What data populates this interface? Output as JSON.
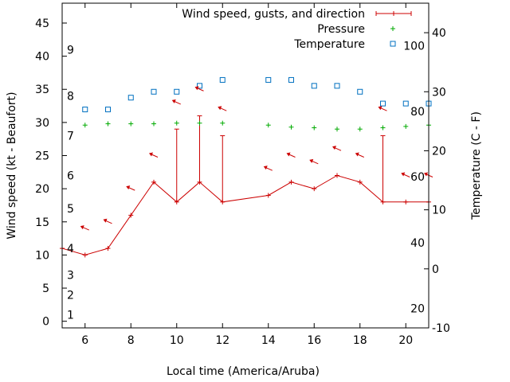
{
  "chart_data": {
    "type": "line",
    "xlabel": "Local time (America/Aruba)",
    "ylabel": "Wind speed (kt - Beaufort)",
    "y2label": "Temperature (C - F)",
    "xlim": [
      5,
      21
    ],
    "ylim": [
      -1,
      48
    ],
    "y2lim": [
      -10,
      45
    ],
    "x_ticks": [
      6,
      8,
      10,
      12,
      14,
      16,
      18,
      20
    ],
    "y_ticks": [
      0,
      5,
      10,
      15,
      20,
      25,
      30,
      35,
      40,
      45
    ],
    "y2_ticks": [
      -10,
      0,
      10,
      20,
      30,
      40
    ],
    "beaufort_labels": [
      {
        "label": "1",
        "y": 1
      },
      {
        "label": "2",
        "y": 4
      },
      {
        "label": "3",
        "y": 7
      },
      {
        "label": "4",
        "y": 11
      },
      {
        "label": "5",
        "y": 17
      },
      {
        "label": "6",
        "y": 22
      },
      {
        "label": "7",
        "y": 28
      },
      {
        "label": "8",
        "y": 34
      },
      {
        "label": "9",
        "y": 41
      }
    ],
    "fahrenheit_labels": [
      {
        "label": "20",
        "temp_c": -6.7
      },
      {
        "label": "40",
        "temp_c": 4.4
      },
      {
        "label": "60",
        "temp_c": 15.6
      },
      {
        "label": "80",
        "temp_c": 26.7
      },
      {
        "label": "100",
        "temp_c": 37.8
      }
    ],
    "legend": {
      "placement": "top-right",
      "entries": [
        "Wind speed, gusts, and direction",
        "Pressure",
        "Temperature"
      ]
    },
    "colors": {
      "wind": "#cc0000",
      "pressure": "#00aa00",
      "temperature": "#0070c0"
    },
    "series": [
      {
        "name": "Wind speed, gusts, and direction",
        "x": [
          5,
          6,
          7,
          8,
          9,
          10,
          11,
          12,
          14,
          15,
          16,
          17,
          18,
          19,
          20,
          21
        ],
        "y": [
          11,
          10,
          11,
          16,
          21,
          18,
          21,
          18,
          19,
          21,
          20,
          22,
          21,
          18,
          18,
          18
        ],
        "gusts": [
          {
            "x": 10,
            "y": 29
          },
          {
            "x": 11,
            "y": 31
          },
          {
            "x": 12,
            "y": 28
          },
          {
            "x": 19,
            "y": 28
          }
        ]
      },
      {
        "name": "Pressure",
        "x": [
          6,
          7,
          8,
          9,
          10,
          11,
          12,
          14,
          15,
          16,
          17,
          18,
          19,
          20,
          21
        ],
        "y": [
          29.6,
          29.8,
          29.8,
          29.8,
          29.9,
          29.9,
          29.9,
          29.6,
          29.3,
          29.2,
          29.0,
          29.0,
          29.2,
          29.4,
          29.6
        ]
      },
      {
        "name": "Temperature",
        "axis": "y2",
        "x": [
          6,
          7,
          8,
          9,
          10,
          11,
          12,
          14,
          15,
          16,
          17,
          18,
          19,
          20,
          21
        ],
        "y": [
          27,
          27,
          29,
          30,
          30,
          31,
          32,
          32,
          32,
          31,
          31,
          30,
          28,
          28,
          28
        ]
      }
    ],
    "wind_direction_markers": [
      {
        "x": 6,
        "y": 14
      },
      {
        "x": 7,
        "y": 15
      },
      {
        "x": 8,
        "y": 20
      },
      {
        "x": 9,
        "y": 25
      },
      {
        "x": 10,
        "y": 33
      },
      {
        "x": 11,
        "y": 35
      },
      {
        "x": 12,
        "y": 32
      },
      {
        "x": 14,
        "y": 23
      },
      {
        "x": 15,
        "y": 25
      },
      {
        "x": 16,
        "y": 24
      },
      {
        "x": 17,
        "y": 26
      },
      {
        "x": 18,
        "y": 25
      },
      {
        "x": 19,
        "y": 32
      },
      {
        "x": 20,
        "y": 22
      },
      {
        "x": 21,
        "y": 22
      }
    ]
  }
}
